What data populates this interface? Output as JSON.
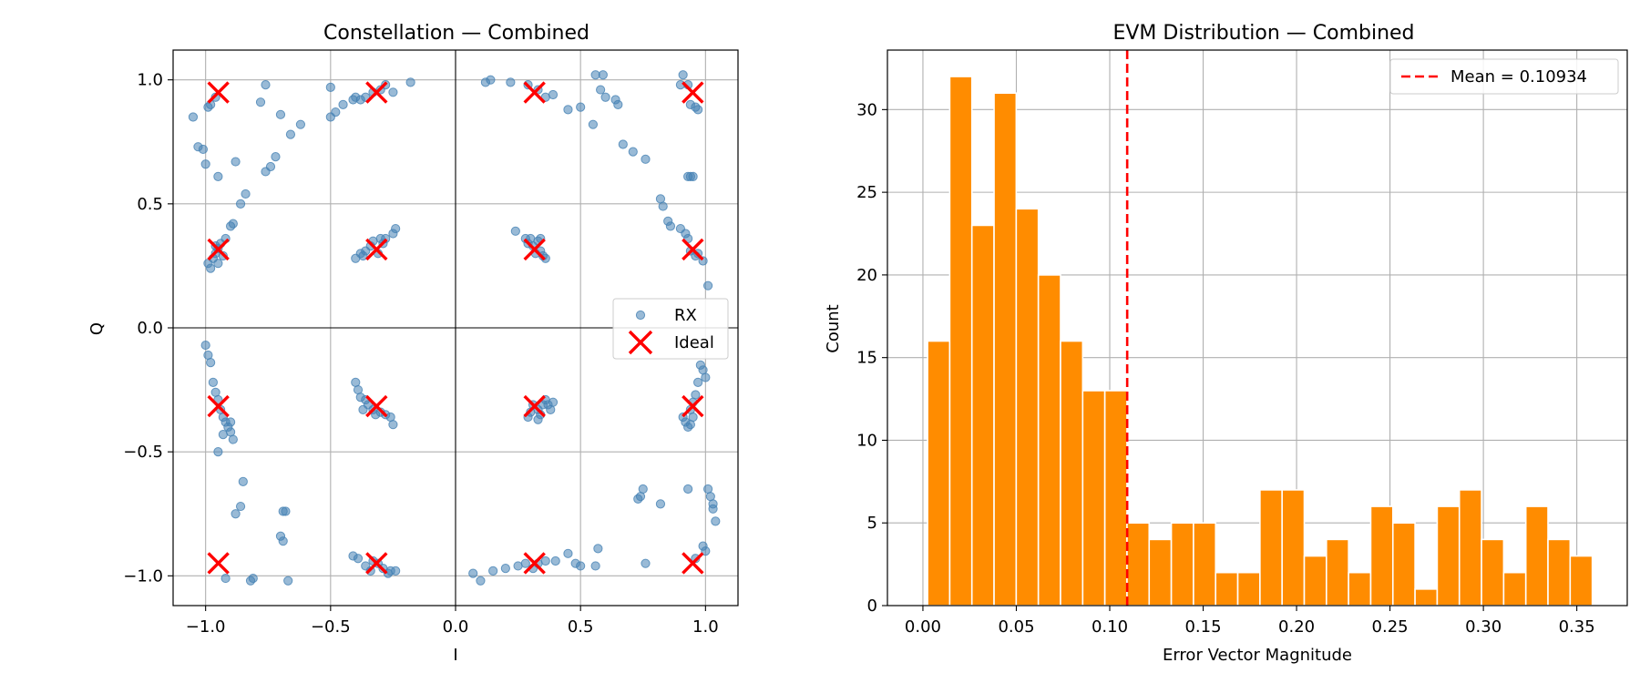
{
  "chart_data": [
    {
      "type": "scatter",
      "title": "Constellation — Combined",
      "xlabel": "I",
      "ylabel": "Q",
      "xlim": [
        -1.13,
        1.13
      ],
      "ylim": [
        -1.12,
        1.12
      ],
      "x_ticks": [
        -1.0,
        -0.5,
        0.0,
        0.5,
        1.0
      ],
      "x_tick_labels": [
        "−1.0",
        "−0.5",
        "0.0",
        "0.5",
        "1.0"
      ],
      "y_ticks": [
        -1.0,
        -0.5,
        0.0,
        0.5,
        1.0
      ],
      "y_tick_labels": [
        "−1.0",
        "−0.5",
        "0.0",
        "0.5",
        "1.0"
      ],
      "grid": true,
      "legend_position": "center-right",
      "colors": {
        "rx": "#4682b4",
        "ideal": "#ff0000",
        "axis_line": "#000000",
        "grid": "#b0b0b0"
      },
      "series": [
        {
          "name": "RX",
          "marker": "circle",
          "points": [
            [
              -1.05,
              0.85
            ],
            [
              -1.03,
              0.73
            ],
            [
              -1.01,
              0.72
            ],
            [
              -1.0,
              0.66
            ],
            [
              -0.99,
              0.89
            ],
            [
              -0.98,
              0.9
            ],
            [
              -0.96,
              0.93
            ],
            [
              -0.95,
              0.61
            ],
            [
              -0.88,
              0.67
            ],
            [
              -0.86,
              0.5
            ],
            [
              -0.84,
              0.54
            ],
            [
              -0.78,
              0.91
            ],
            [
              -0.76,
              0.98
            ],
            [
              -0.72,
              0.69
            ],
            [
              -0.7,
              0.86
            ],
            [
              -0.66,
              0.78
            ],
            [
              -0.62,
              0.82
            ],
            [
              -0.76,
              0.63
            ],
            [
              -0.74,
              0.65
            ],
            [
              -0.5,
              0.97
            ],
            [
              -0.5,
              0.85
            ],
            [
              -0.48,
              0.87
            ],
            [
              -0.45,
              0.9
            ],
            [
              -0.41,
              0.92
            ],
            [
              -0.4,
              0.93
            ],
            [
              -0.38,
              0.92
            ],
            [
              -0.36,
              0.93
            ],
            [
              -0.33,
              0.95
            ],
            [
              -0.3,
              0.96
            ],
            [
              -0.28,
              0.98
            ],
            [
              -0.25,
              0.95
            ],
            [
              -0.18,
              0.99
            ],
            [
              -0.99,
              0.26
            ],
            [
              -0.97,
              0.28
            ],
            [
              -0.96,
              0.3
            ],
            [
              -0.95,
              0.32
            ],
            [
              -0.94,
              0.34
            ],
            [
              -0.92,
              0.36
            ],
            [
              -0.98,
              0.24
            ],
            [
              -0.95,
              0.26
            ],
            [
              -0.9,
              0.41
            ],
            [
              -0.89,
              0.42
            ],
            [
              -0.96,
              0.33
            ],
            [
              -0.93,
              0.29
            ],
            [
              -0.4,
              0.28
            ],
            [
              -0.38,
              0.3
            ],
            [
              -0.36,
              0.31
            ],
            [
              -0.34,
              0.33
            ],
            [
              -0.33,
              0.35
            ],
            [
              -0.3,
              0.36
            ],
            [
              -0.29,
              0.34
            ],
            [
              -0.28,
              0.36
            ],
            [
              -0.25,
              0.38
            ],
            [
              -0.24,
              0.4
            ],
            [
              -0.31,
              0.3
            ],
            [
              -0.37,
              0.29
            ],
            [
              0.12,
              0.99
            ],
            [
              0.14,
              1.0
            ],
            [
              0.22,
              0.99
            ],
            [
              0.29,
              0.98
            ],
            [
              0.33,
              0.96
            ],
            [
              0.36,
              0.93
            ],
            [
              0.39,
              0.94
            ],
            [
              0.45,
              0.88
            ],
            [
              0.5,
              0.89
            ],
            [
              0.55,
              0.82
            ],
            [
              0.56,
              1.02
            ],
            [
              0.59,
              1.02
            ],
            [
              0.58,
              0.96
            ],
            [
              0.6,
              0.93
            ],
            [
              0.65,
              0.9
            ],
            [
              0.67,
              0.74
            ],
            [
              0.71,
              0.71
            ],
            [
              0.76,
              0.68
            ],
            [
              0.64,
              0.92
            ],
            [
              0.24,
              0.39
            ],
            [
              0.28,
              0.36
            ],
            [
              0.29,
              0.34
            ],
            [
              0.3,
              0.36
            ],
            [
              0.32,
              0.3
            ],
            [
              0.33,
              0.35
            ],
            [
              0.34,
              0.31
            ],
            [
              0.35,
              0.29
            ],
            [
              0.36,
              0.28
            ],
            [
              0.31,
              0.33
            ],
            [
              0.34,
              0.36
            ],
            [
              0.82,
              0.52
            ],
            [
              0.83,
              0.49
            ],
            [
              0.85,
              0.43
            ],
            [
              0.86,
              0.41
            ],
            [
              0.9,
              0.4
            ],
            [
              0.92,
              0.38
            ],
            [
              0.93,
              0.36
            ],
            [
              0.94,
              0.31
            ],
            [
              0.96,
              0.29
            ],
            [
              0.97,
              0.3
            ],
            [
              0.99,
              0.27
            ],
            [
              1.01,
              0.17
            ],
            [
              0.9,
              0.98
            ],
            [
              0.91,
              1.02
            ],
            [
              0.93,
              0.98
            ],
            [
              0.94,
              0.9
            ],
            [
              0.96,
              0.89
            ],
            [
              0.97,
              0.88
            ],
            [
              0.93,
              0.61
            ],
            [
              0.94,
              0.61
            ],
            [
              0.95,
              0.61
            ],
            [
              -1.0,
              -0.07
            ],
            [
              -0.99,
              -0.11
            ],
            [
              -0.98,
              -0.14
            ],
            [
              -0.97,
              -0.22
            ],
            [
              -0.96,
              -0.26
            ],
            [
              -0.95,
              -0.29
            ],
            [
              -0.94,
              -0.33
            ],
            [
              -0.93,
              -0.36
            ],
            [
              -0.92,
              -0.38
            ],
            [
              -0.91,
              -0.4
            ],
            [
              -0.9,
              -0.42
            ],
            [
              -0.89,
              -0.45
            ],
            [
              -0.9,
              -0.38
            ],
            [
              -0.95,
              -0.5
            ],
            [
              -0.93,
              -0.43
            ],
            [
              -0.4,
              -0.22
            ],
            [
              -0.39,
              -0.25
            ],
            [
              -0.38,
              -0.28
            ],
            [
              -0.36,
              -0.29
            ],
            [
              -0.35,
              -0.31
            ],
            [
              -0.33,
              -0.33
            ],
            [
              -0.32,
              -0.35
            ],
            [
              -0.3,
              -0.34
            ],
            [
              -0.28,
              -0.35
            ],
            [
              -0.26,
              -0.36
            ],
            [
              -0.25,
              -0.39
            ],
            [
              -0.37,
              -0.33
            ],
            [
              0.29,
              -0.36
            ],
            [
              0.3,
              -0.34
            ],
            [
              0.31,
              -0.31
            ],
            [
              0.33,
              -0.33
            ],
            [
              0.34,
              -0.35
            ],
            [
              0.35,
              -0.31
            ],
            [
              0.36,
              -0.29
            ],
            [
              0.37,
              -0.31
            ],
            [
              0.38,
              -0.33
            ],
            [
              0.39,
              -0.3
            ],
            [
              0.33,
              -0.37
            ],
            [
              0.91,
              -0.36
            ],
            [
              0.92,
              -0.38
            ],
            [
              0.93,
              -0.4
            ],
            [
              0.94,
              -0.33
            ],
            [
              0.95,
              -0.3
            ],
            [
              0.96,
              -0.27
            ],
            [
              0.97,
              -0.22
            ],
            [
              0.98,
              -0.15
            ],
            [
              0.99,
              -0.17
            ],
            [
              1.0,
              -0.2
            ],
            [
              0.94,
              -0.39
            ],
            [
              0.95,
              -0.36
            ],
            [
              -0.92,
              -1.01
            ],
            [
              -0.88,
              -0.75
            ],
            [
              -0.86,
              -0.72
            ],
            [
              -0.85,
              -0.62
            ],
            [
              -0.82,
              -1.02
            ],
            [
              -0.81,
              -1.01
            ],
            [
              -0.69,
              -0.74
            ],
            [
              -0.68,
              -0.74
            ],
            [
              -0.7,
              -0.84
            ],
            [
              -0.69,
              -0.86
            ],
            [
              -0.67,
              -1.02
            ],
            [
              -0.41,
              -0.92
            ],
            [
              -0.39,
              -0.93
            ],
            [
              -0.36,
              -0.96
            ],
            [
              -0.33,
              -0.94
            ],
            [
              -0.31,
              -0.95
            ],
            [
              -0.29,
              -0.97
            ],
            [
              -0.27,
              -0.99
            ],
            [
              -0.26,
              -0.98
            ],
            [
              -0.24,
              -0.98
            ],
            [
              -0.34,
              -0.98
            ],
            [
              0.07,
              -0.99
            ],
            [
              0.1,
              -1.02
            ],
            [
              0.15,
              -0.98
            ],
            [
              0.2,
              -0.97
            ],
            [
              0.25,
              -0.96
            ],
            [
              0.28,
              -0.95
            ],
            [
              0.31,
              -0.97
            ],
            [
              0.33,
              -0.95
            ],
            [
              0.36,
              -0.94
            ],
            [
              0.4,
              -0.94
            ],
            [
              0.45,
              -0.91
            ],
            [
              0.48,
              -0.95
            ],
            [
              0.5,
              -0.96
            ],
            [
              0.56,
              -0.96
            ],
            [
              0.57,
              -0.89
            ],
            [
              0.73,
              -0.69
            ],
            [
              0.74,
              -0.68
            ],
            [
              0.75,
              -0.65
            ],
            [
              0.76,
              -0.95
            ],
            [
              0.82,
              -0.71
            ],
            [
              0.93,
              -0.65
            ],
            [
              0.96,
              -0.93
            ],
            [
              1.0,
              -0.9
            ],
            [
              1.01,
              -0.65
            ],
            [
              1.02,
              -0.68
            ],
            [
              1.03,
              -0.71
            ],
            [
              1.03,
              -0.73
            ],
            [
              1.04,
              -0.78
            ],
            [
              0.99,
              -0.88
            ]
          ]
        },
        {
          "name": "Ideal",
          "marker": "x",
          "points": [
            [
              -0.949,
              0.949
            ],
            [
              -0.316,
              0.949
            ],
            [
              0.316,
              0.949
            ],
            [
              0.949,
              0.949
            ],
            [
              -0.949,
              0.316
            ],
            [
              -0.316,
              0.316
            ],
            [
              0.316,
              0.316
            ],
            [
              0.949,
              0.316
            ],
            [
              -0.949,
              -0.316
            ],
            [
              -0.316,
              -0.316
            ],
            [
              0.316,
              -0.316
            ],
            [
              0.949,
              -0.316
            ],
            [
              -0.949,
              -0.949
            ],
            [
              -0.316,
              -0.949
            ],
            [
              0.316,
              -0.949
            ],
            [
              0.949,
              -0.949
            ]
          ]
        }
      ]
    },
    {
      "type": "bar",
      "title": "EVM Distribution — Combined",
      "xlabel": "Error Vector Magnitude",
      "ylabel": "Count",
      "xlim": [
        -0.019,
        0.377
      ],
      "ylim": [
        0,
        33.6
      ],
      "x_ticks": [
        0.0,
        0.05,
        0.1,
        0.15,
        0.2,
        0.25,
        0.3,
        0.35
      ],
      "x_tick_labels": [
        "0.00",
        "0.05",
        "0.10",
        "0.15",
        "0.20",
        "0.25",
        "0.30",
        "0.35"
      ],
      "y_ticks": [
        0,
        5,
        10,
        15,
        20,
        25,
        30
      ],
      "y_tick_labels": [
        "0",
        "5",
        "10",
        "15",
        "20",
        "25",
        "30"
      ],
      "grid": true,
      "legend_position": "top-right",
      "bin_start": 0.0025,
      "bin_width": 0.01186,
      "counts": [
        16,
        32,
        23,
        31,
        24,
        20,
        16,
        13,
        13,
        5,
        4,
        5,
        5,
        2,
        2,
        7,
        7,
        3,
        4,
        2,
        6,
        5,
        1,
        6,
        7,
        4,
        2,
        6,
        4,
        3
      ],
      "mean": 0.10934,
      "mean_label": "Mean = 0.10934",
      "colors": {
        "bar": "#ff8c00",
        "mean_line": "#ff0000",
        "grid": "#b0b0b0"
      }
    }
  ]
}
